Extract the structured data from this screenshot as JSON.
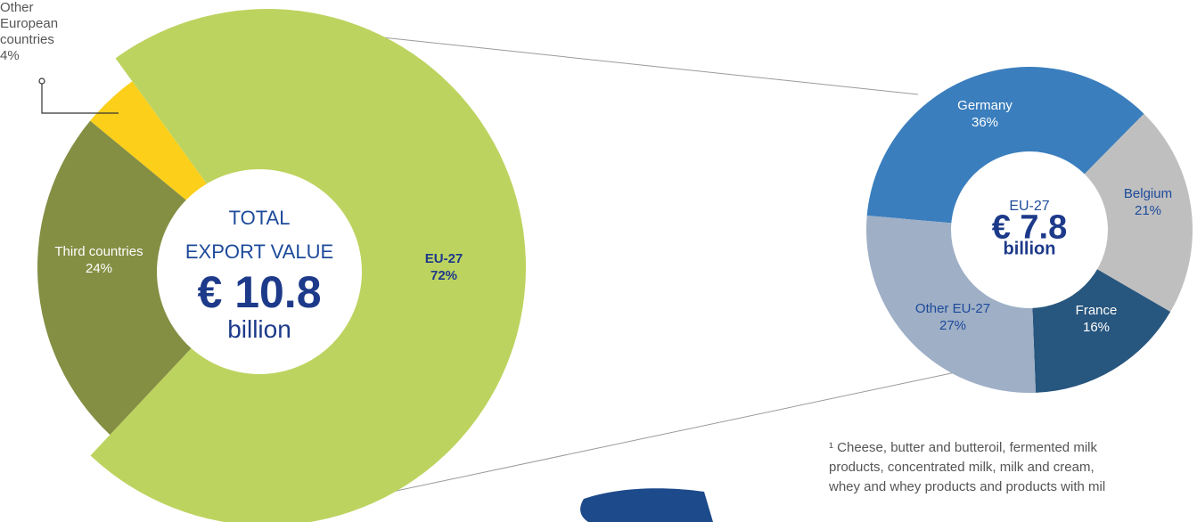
{
  "chart_data": [
    {
      "type": "donut",
      "categories": [
        "EU-27",
        "Third countries",
        "Other European countries"
      ],
      "values": [
        72,
        24,
        4
      ],
      "value_labels": [
        "72%",
        "24%",
        "4%"
      ],
      "colors": [
        "#bdd35f",
        "#848f43",
        "#fccf1a"
      ],
      "center_lines": [
        "TOTAL",
        "EXPORT VALUE",
        "€ 10.8",
        "billion"
      ]
    },
    {
      "type": "donut",
      "categories": [
        "Germany",
        "Belgium",
        "France",
        "Other EU-27"
      ],
      "values": [
        36,
        21,
        16,
        27
      ],
      "value_labels": [
        "36%",
        "21%",
        "16%",
        "27%"
      ],
      "colors": [
        "#3a7ebd",
        "#bfbfbf",
        "#27567e",
        "#9eafc6"
      ],
      "center_lines": [
        "EU-27",
        "€ 7.8",
        "billion"
      ]
    }
  ],
  "footnote": [
    "¹ Cheese, butter and butteroil, fermented milk",
    "products, concentrated milk, milk and cream,",
    "whey and whey products and products with mil"
  ]
}
